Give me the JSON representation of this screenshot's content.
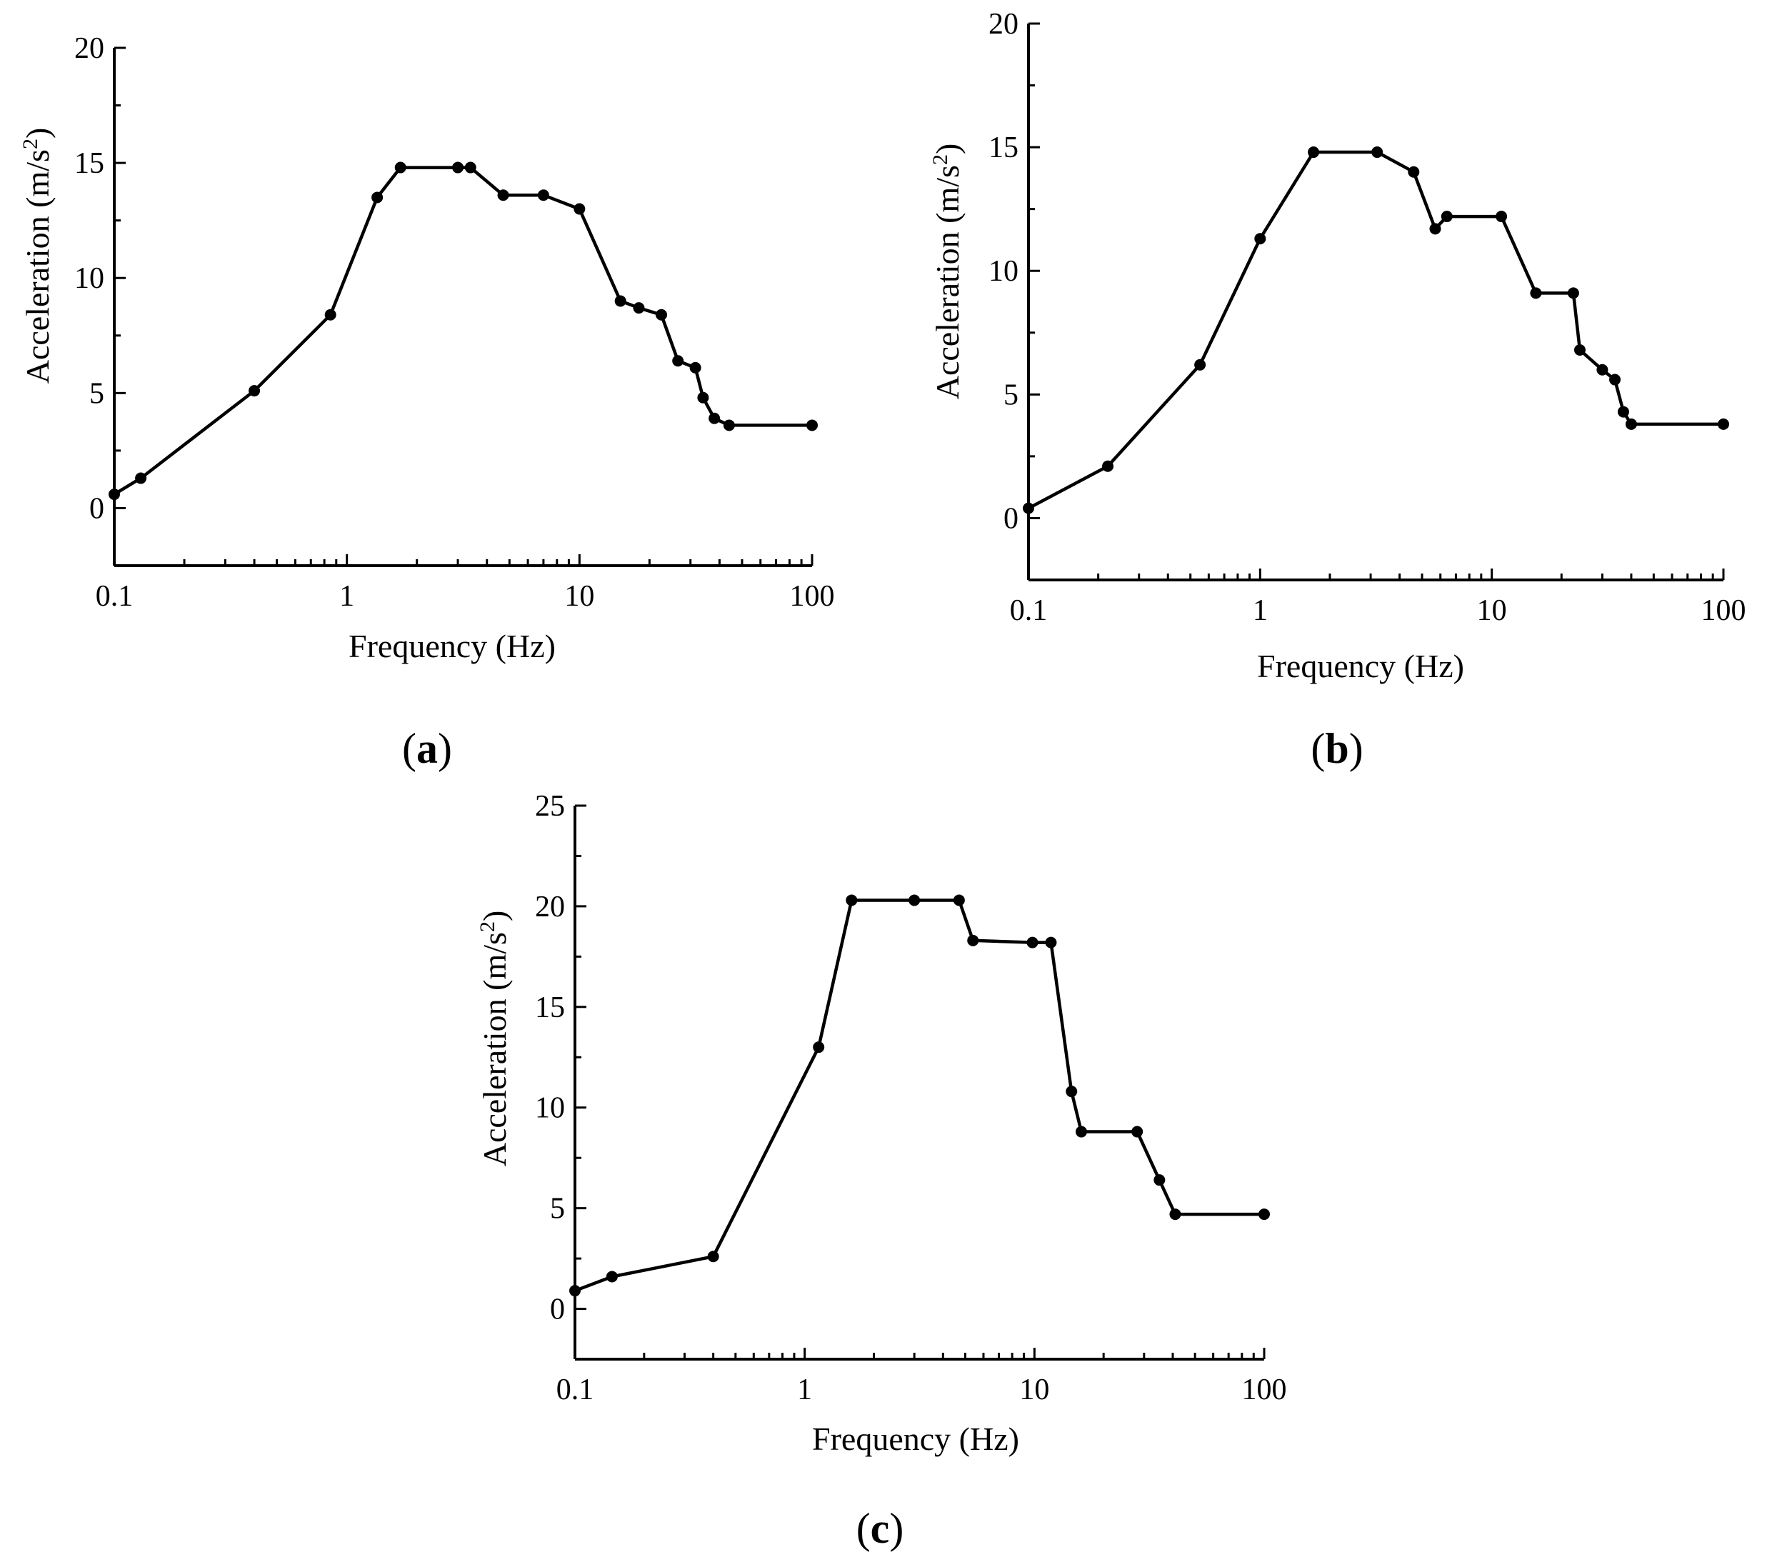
{
  "chart_data": [
    {
      "type": "line",
      "panel": "a",
      "xlabel": "Frequency (Hz)",
      "ylabel": "Acceleration (m/s",
      "ylabel_sup": "2",
      "ylabel_end": ")",
      "xscale": "log",
      "xlim": [
        0.1,
        100
      ],
      "ylim": [
        -2.5,
        20
      ],
      "yticks": [
        0,
        5,
        10,
        15,
        20
      ],
      "xticks": [
        0.1,
        1,
        10,
        100
      ],
      "xtick_labels": [
        "0.1",
        "1",
        "10",
        "100"
      ],
      "ytick_labels": [
        "0",
        "5",
        "10",
        "15",
        "20"
      ],
      "grid": false,
      "series": [
        {
          "x": [
            0.1,
            0.13,
            0.4,
            0.85,
            1.35,
            1.7,
            3.0,
            3.4,
            4.7,
            7.0,
            10.0,
            15.0,
            18.0,
            22.5,
            26.5,
            31.5,
            34.0,
            38.0,
            44.0,
            100.0
          ],
          "y": [
            0.6,
            1.3,
            5.1,
            8.4,
            13.5,
            14.8,
            14.8,
            14.8,
            13.6,
            13.6,
            13.0,
            9.0,
            8.7,
            8.4,
            6.4,
            6.1,
            4.8,
            3.9,
            3.6,
            3.6
          ]
        }
      ]
    },
    {
      "type": "line",
      "panel": "b",
      "xlabel": "Frequency (Hz)",
      "ylabel": "Acceleration (m/s",
      "ylabel_sup": "2",
      "ylabel_end": ")",
      "xscale": "log",
      "xlim": [
        0.1,
        100
      ],
      "ylim": [
        -2.5,
        20
      ],
      "yticks": [
        0,
        5,
        10,
        15,
        20
      ],
      "xticks": [
        0.1,
        1,
        10,
        100
      ],
      "xtick_labels": [
        "0.1",
        "1",
        "10",
        "100"
      ],
      "ytick_labels": [
        "0",
        "5",
        "10",
        "15",
        "20"
      ],
      "grid": false,
      "series": [
        {
          "x": [
            0.1,
            0.22,
            0.55,
            1.0,
            1.7,
            3.2,
            4.6,
            5.7,
            6.4,
            11.0,
            15.5,
            22.5,
            24.0,
            30.0,
            34.0,
            37.0,
            40.0,
            100.0
          ],
          "y": [
            0.4,
            2.1,
            6.2,
            11.3,
            14.8,
            14.8,
            14.0,
            11.7,
            12.2,
            12.2,
            9.1,
            9.1,
            6.8,
            6.0,
            5.6,
            4.3,
            3.8,
            3.8
          ]
        }
      ]
    },
    {
      "type": "line",
      "panel": "c",
      "xlabel": "Frequency  (Hz)",
      "ylabel": "Acceleration (m/s",
      "ylabel_sup": "2",
      "ylabel_end": ")",
      "xscale": "log",
      "xlim": [
        0.1,
        100
      ],
      "ylim": [
        -2.5,
        25
      ],
      "yticks": [
        0,
        5,
        10,
        15,
        20,
        25
      ],
      "xticks": [
        0.1,
        1,
        10,
        100
      ],
      "xtick_labels": [
        "0.1",
        "1",
        "10",
        "100"
      ],
      "ytick_labels": [
        "0",
        "5",
        "10",
        "15",
        "20",
        "25"
      ],
      "grid": false,
      "series": [
        {
          "x": [
            0.1,
            0.145,
            0.4,
            1.15,
            1.6,
            3.0,
            4.7,
            5.4,
            9.8,
            11.8,
            14.5,
            16.0,
            28.0,
            35.0,
            41.0,
            100.0
          ],
          "y": [
            0.9,
            1.6,
            2.6,
            13.0,
            20.3,
            20.3,
            20.3,
            18.3,
            18.2,
            18.2,
            10.8,
            8.8,
            8.8,
            6.4,
            4.7,
            4.7
          ]
        }
      ]
    }
  ]
}
